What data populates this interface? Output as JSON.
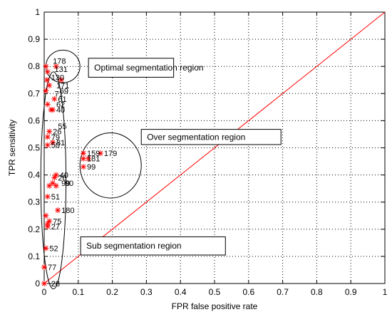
{
  "chart_data": {
    "type": "scatter",
    "xlabel": "FPR false positive rate",
    "ylabel": "TPR sensitivity",
    "xlim": [
      0,
      1
    ],
    "ylim": [
      0,
      1
    ],
    "xticks": [
      "0",
      "0.1",
      "0.2",
      "0.3",
      "0.4",
      "0.5",
      "0.6",
      "0.7",
      "0.8",
      "0.9",
      "1"
    ],
    "yticks": [
      "0",
      "0.1",
      "0.2",
      "0.3",
      "0.4",
      "0.5",
      "0.6",
      "0.7",
      "0.8",
      "0.9",
      "1"
    ],
    "grid": true,
    "reference_line": {
      "x": [
        0,
        1
      ],
      "y": [
        0,
        1
      ],
      "color": "#ff0000"
    },
    "marker_color": "#ff0000",
    "points": [
      {
        "x": 0.005,
        "y": 0.8,
        "label": ""
      },
      {
        "x": 0.01,
        "y": 0.78,
        "label": ""
      },
      {
        "x": 0.008,
        "y": 0.75,
        "label": ""
      },
      {
        "x": 0.015,
        "y": 0.73,
        "label": ""
      },
      {
        "x": 0.005,
        "y": 0.71,
        "label": ""
      },
      {
        "x": 0.01,
        "y": 0.66,
        "label": ""
      },
      {
        "x": 0.02,
        "y": 0.64,
        "label": ""
      },
      {
        "x": 0.035,
        "y": 0.8,
        "label": ""
      },
      {
        "x": 0.05,
        "y": 0.75,
        "label": ""
      },
      {
        "x": 0.03,
        "y": 0.68,
        "label": "61"
      },
      {
        "x": 0.025,
        "y": 0.64,
        "label": "40"
      },
      {
        "x": 0.015,
        "y": 0.56,
        "label": "26"
      },
      {
        "x": 0.01,
        "y": 0.54,
        "label": "79"
      },
      {
        "x": 0.025,
        "y": 0.52,
        "label": "81"
      },
      {
        "x": 0.01,
        "y": 0.51,
        "label": "50"
      },
      {
        "x": 0.035,
        "y": 0.4,
        "label": "40"
      },
      {
        "x": 0.03,
        "y": 0.39,
        "label": "26"
      },
      {
        "x": 0.025,
        "y": 0.37,
        "label": ""
      },
      {
        "x": 0.035,
        "y": 0.36,
        "label": ""
      },
      {
        "x": 0.015,
        "y": 0.36,
        "label": ""
      },
      {
        "x": 0.01,
        "y": 0.32,
        "label": "51"
      },
      {
        "x": 0.04,
        "y": 0.27,
        "label": "180"
      },
      {
        "x": 0.005,
        "y": 0.25,
        "label": ""
      },
      {
        "x": 0.015,
        "y": 0.23,
        "label": "75"
      },
      {
        "x": 0.01,
        "y": 0.22,
        "label": ""
      },
      {
        "x": 0.01,
        "y": 0.21,
        "label": "27"
      },
      {
        "x": 0.005,
        "y": 0.13,
        "label": "52"
      },
      {
        "x": 0.0,
        "y": 0.06,
        "label": "77"
      },
      {
        "x": 0.0,
        "y": 0.0,
        "label": ""
      },
      {
        "x": 0.115,
        "y": 0.48,
        "label": "159"
      },
      {
        "x": 0.165,
        "y": 0.48,
        "label": "179"
      },
      {
        "x": 0.115,
        "y": 0.46,
        "label": ""
      },
      {
        "x": 0.13,
        "y": 0.46,
        "label": ""
      },
      {
        "x": 0.115,
        "y": 0.43,
        "label": "99"
      }
    ],
    "black_labels": [
      {
        "x": 0.015,
        "y": 0.82,
        "text": "178"
      },
      {
        "x": 0.02,
        "y": 0.79,
        "text": "131"
      },
      {
        "x": 0.01,
        "y": 0.76,
        "text": "130"
      },
      {
        "x": 0.025,
        "y": 0.73,
        "text": "171"
      },
      {
        "x": 0.035,
        "y": 0.71,
        "text": "69"
      },
      {
        "x": 0.02,
        "y": 0.7,
        "text": "71"
      },
      {
        "x": 0.025,
        "y": 0.66,
        "text": "62"
      },
      {
        "x": 0.03,
        "y": 0.58,
        "text": "55"
      },
      {
        "x": 0.04,
        "y": 0.37,
        "text": "99"
      },
      {
        "x": 0.05,
        "y": 0.37,
        "text": "90"
      },
      {
        "x": 0.01,
        "y": 0.0,
        "text": "28"
      },
      {
        "x": 0.115,
        "y": 0.46,
        "text": "181"
      }
    ],
    "regions": [
      {
        "label": "Optimal segmentation region",
        "cx": 0.055,
        "cy": 0.8,
        "rx": 0.05,
        "ry": 0.06
      },
      {
        "label": "Over segmentation region",
        "cx": 0.195,
        "cy": 0.435,
        "rx": 0.09,
        "ry": 0.12
      },
      {
        "label": "Sub segmentation region",
        "cx": 0.027,
        "cy": 0.38,
        "rx": 0.037,
        "ry": 0.4
      }
    ],
    "region_boxes": [
      {
        "text_index": 0,
        "x0": 0.13,
        "y0": 0.76,
        "x1": 0.38,
        "y1": 0.83
      },
      {
        "text_index": 1,
        "x0": 0.285,
        "y0": 0.512,
        "x1": 0.695,
        "y1": 0.568
      },
      {
        "text_index": 2,
        "x0": 0.107,
        "y0": 0.105,
        "x1": 0.532,
        "y1": 0.172
      }
    ]
  }
}
